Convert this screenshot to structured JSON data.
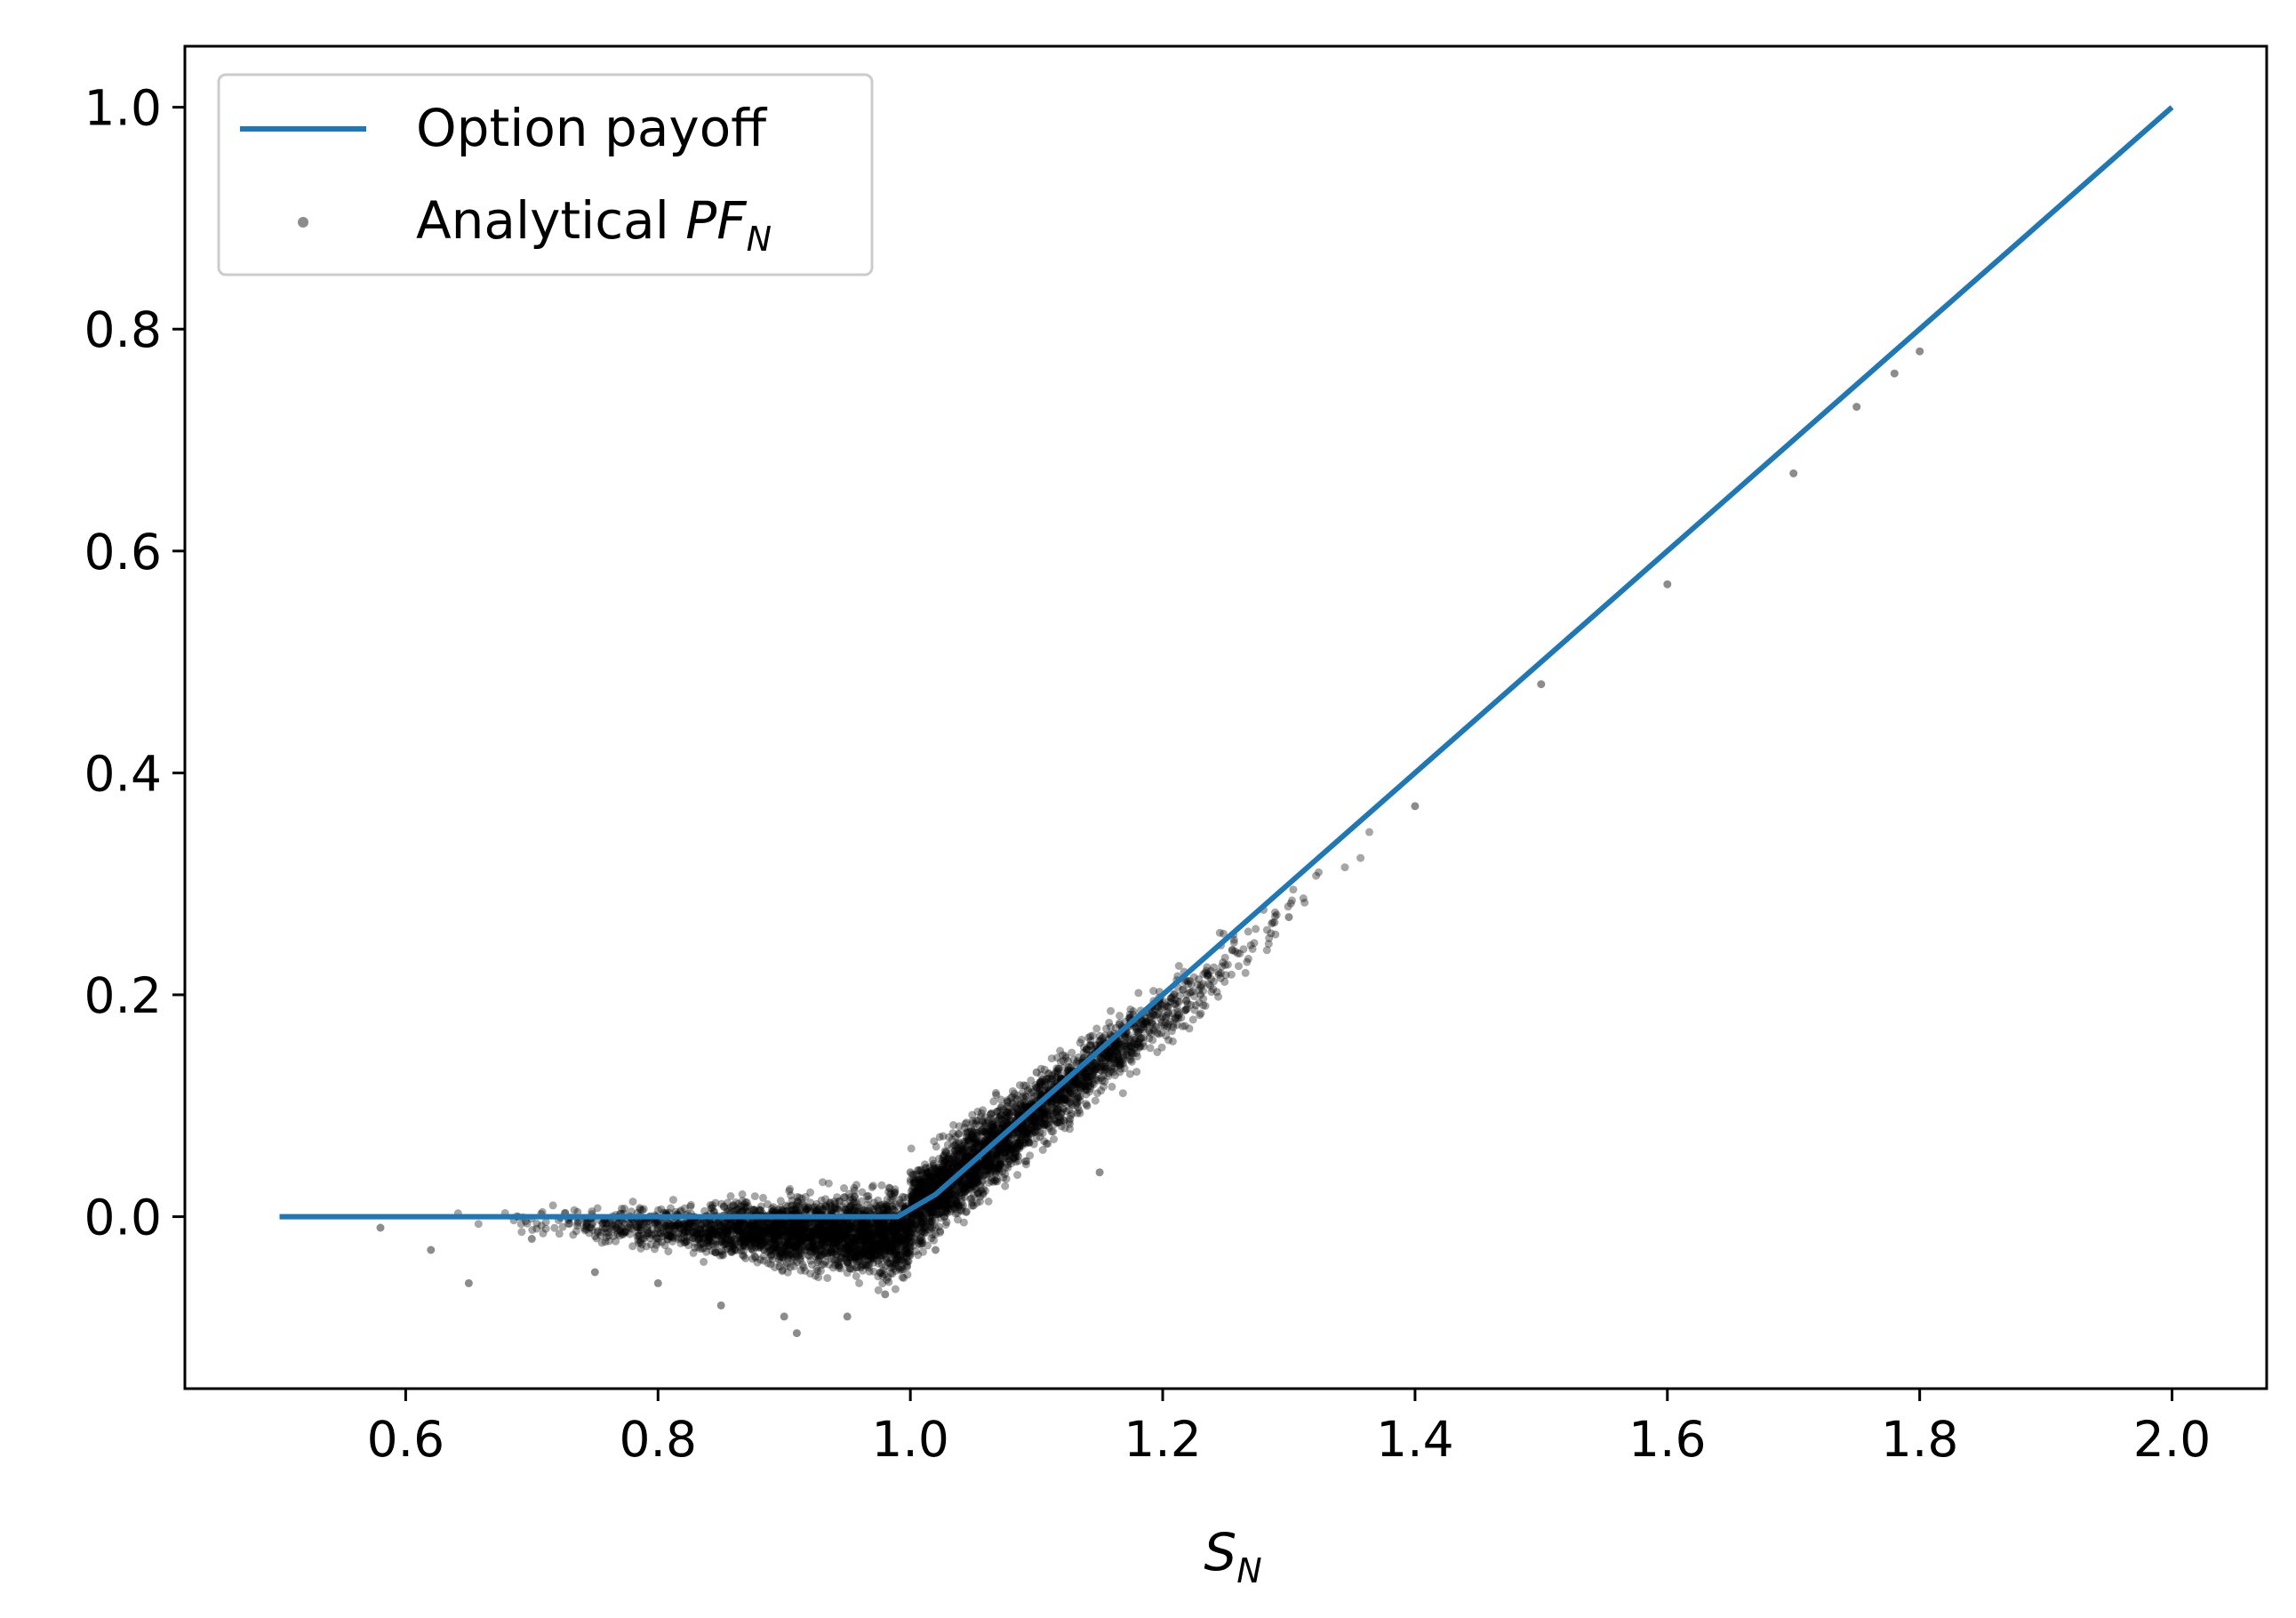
{
  "chart_data": {
    "type": "line+scatter",
    "title": "",
    "xlabel": {
      "main": "S",
      "sub": "N"
    },
    "ylabel": "",
    "xlim": [
      0.425,
      2.075
    ],
    "ylim": [
      -0.155,
      1.055
    ],
    "xticks": [
      0.6,
      0.8,
      1.0,
      1.2,
      1.4,
      1.6,
      1.8,
      2.0
    ],
    "xtick_labels": [
      "0.6",
      "0.8",
      "1.0",
      "1.2",
      "1.4",
      "1.6",
      "1.8",
      "2.0"
    ],
    "yticks": [
      0.0,
      0.2,
      0.4,
      0.6,
      0.8,
      1.0
    ],
    "ytick_labels": [
      "0.0",
      "0.2",
      "0.4",
      "0.6",
      "0.8",
      "1.0"
    ],
    "grid": false,
    "legend_position": "upper-left",
    "series": [
      {
        "name": "Option payoff",
        "kind": "line",
        "color": "#1f77b4",
        "points": [
          [
            0.5,
            0.0
          ],
          [
            0.99,
            0.0
          ],
          [
            1.02,
            0.02
          ],
          [
            2.0,
            1.0
          ]
        ]
      },
      {
        "name": "Analytical PF",
        "name_subscript": "N",
        "kind": "scatter",
        "color": "#000000",
        "alpha": 0.35,
        "x_range": [
          0.58,
          1.8
        ],
        "trend": "approximately max(S_N - 1, 0), slightly above the payoff near 1.0 and slightly below for S_N > 1.2",
        "sample_points": [
          [
            0.58,
            -0.01
          ],
          [
            0.62,
            -0.03
          ],
          [
            0.65,
            -0.06
          ],
          [
            0.7,
            -0.02
          ],
          [
            0.75,
            -0.05
          ],
          [
            0.8,
            -0.06
          ],
          [
            0.85,
            -0.08
          ],
          [
            0.9,
            -0.09
          ],
          [
            0.91,
            -0.105
          ],
          [
            0.95,
            -0.09
          ],
          [
            0.98,
            -0.07
          ],
          [
            1.0,
            0.04
          ],
          [
            1.02,
            -0.03
          ],
          [
            1.05,
            0.01
          ],
          [
            1.1,
            0.13
          ],
          [
            1.14,
            0.1
          ],
          [
            1.15,
            0.04
          ],
          [
            1.2,
            0.18
          ],
          [
            1.23,
            0.2
          ],
          [
            1.3,
            0.27
          ],
          [
            1.4,
            0.37
          ],
          [
            1.5,
            0.48
          ],
          [
            1.6,
            0.57
          ],
          [
            1.7,
            0.67
          ],
          [
            1.75,
            0.73
          ],
          [
            1.78,
            0.76
          ],
          [
            1.8,
            0.78
          ]
        ]
      }
    ]
  }
}
